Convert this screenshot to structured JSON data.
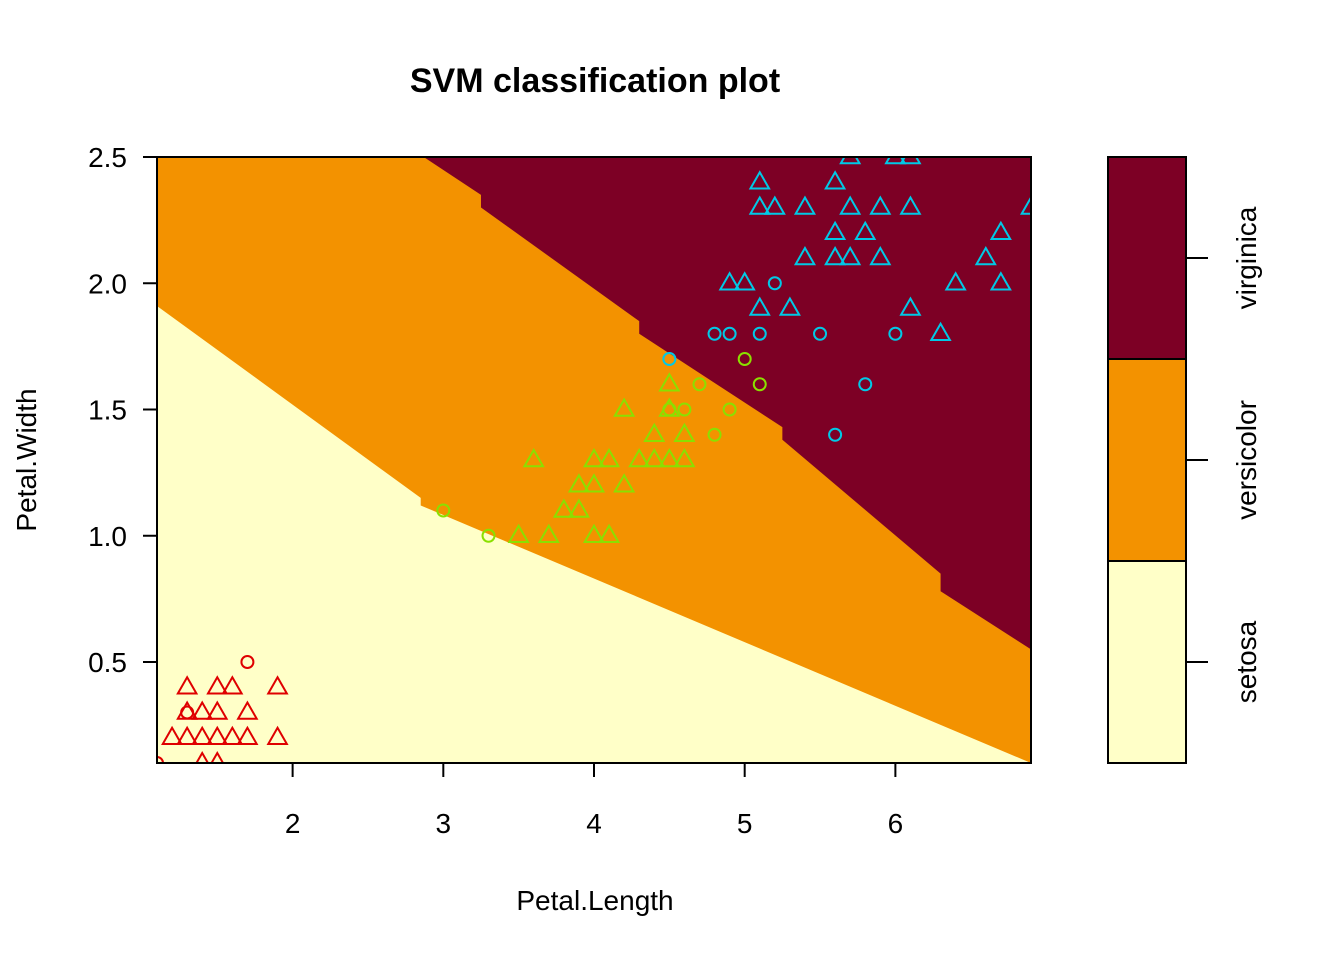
{
  "chart_data": {
    "type": "scatter",
    "title": "SVM classification plot",
    "xlabel": "Petal.Length",
    "ylabel": "Petal.Width",
    "xlim": [
      1.1,
      6.9
    ],
    "ylim": [
      0.1,
      2.5
    ],
    "xticks": [
      2,
      3,
      4,
      5,
      6
    ],
    "yticks": [
      0.5,
      1.0,
      1.5,
      2.0,
      2.5
    ],
    "ytick_labels": [
      "0.5",
      "1.0",
      "1.5",
      "2.0",
      "2.5"
    ],
    "grid": false,
    "legend": {
      "placement": "right",
      "entries": [
        "setosa",
        "versicolor",
        "virginica"
      ]
    },
    "region_colors": {
      "setosa": "#FFFFC8",
      "versicolor": "#F39200",
      "virginica": "#7D0025"
    },
    "boundaries": {
      "setosa_versicolor": [
        [
          1.1,
          1.91
        ],
        [
          2.85,
          1.15
        ],
        [
          2.85,
          1.12
        ],
        [
          6.9,
          -0.5
        ]
      ],
      "versicolor_virginica": [
        [
          2.87,
          2.5
        ],
        [
          3.25,
          2.35
        ],
        [
          3.25,
          2.3
        ],
        [
          4.3,
          1.85
        ],
        [
          4.3,
          1.8
        ],
        [
          5.25,
          1.43
        ],
        [
          5.25,
          1.38
        ],
        [
          6.3,
          0.85
        ],
        [
          6.3,
          0.78
        ],
        [
          6.9,
          0.55
        ]
      ]
    },
    "series": [
      {
        "name": "setosa",
        "color": "#DF0000",
        "vectors": [
          [
            1.3,
            0.3
          ],
          [
            1.7,
            0.5
          ],
          [
            1.1,
            0.1
          ]
        ],
        "points": [
          [
            1.3,
            0.4
          ],
          [
            1.5,
            0.4
          ],
          [
            1.6,
            0.4
          ],
          [
            1.9,
            0.4
          ],
          [
            1.3,
            0.3
          ],
          [
            1.4,
            0.3
          ],
          [
            1.5,
            0.3
          ],
          [
            1.7,
            0.3
          ],
          [
            1.2,
            0.2
          ],
          [
            1.3,
            0.2
          ],
          [
            1.4,
            0.2
          ],
          [
            1.5,
            0.2
          ],
          [
            1.6,
            0.2
          ],
          [
            1.7,
            0.2
          ],
          [
            1.9,
            0.2
          ],
          [
            1.4,
            0.1
          ],
          [
            1.5,
            0.1
          ]
        ]
      },
      {
        "name": "versicolor",
        "color": "#8AE000",
        "vectors": [
          [
            3.0,
            1.1
          ],
          [
            3.3,
            1.0
          ],
          [
            4.5,
            1.5
          ],
          [
            4.6,
            1.5
          ],
          [
            4.7,
            1.6
          ],
          [
            4.8,
            1.4
          ],
          [
            4.9,
            1.5
          ],
          [
            5.0,
            1.7
          ],
          [
            5.1,
            1.6
          ]
        ],
        "points": [
          [
            3.5,
            1.0
          ],
          [
            3.7,
            1.0
          ],
          [
            4.0,
            1.0
          ],
          [
            4.1,
            1.0
          ],
          [
            3.8,
            1.1
          ],
          [
            3.9,
            1.1
          ],
          [
            3.9,
            1.2
          ],
          [
            4.0,
            1.2
          ],
          [
            4.2,
            1.2
          ],
          [
            3.6,
            1.3
          ],
          [
            4.0,
            1.3
          ],
          [
            4.1,
            1.3
          ],
          [
            4.3,
            1.3
          ],
          [
            4.4,
            1.3
          ],
          [
            4.5,
            1.3
          ],
          [
            4.6,
            1.3
          ],
          [
            4.4,
            1.4
          ],
          [
            4.6,
            1.4
          ],
          [
            4.2,
            1.5
          ],
          [
            4.5,
            1.5
          ],
          [
            4.5,
            1.6
          ]
        ]
      },
      {
        "name": "virginica",
        "color": "#00C9E6",
        "vectors": [
          [
            4.5,
            1.7
          ],
          [
            4.8,
            1.8
          ],
          [
            4.9,
            1.8
          ],
          [
            5.1,
            1.8
          ],
          [
            5.5,
            1.8
          ],
          [
            6.0,
            1.8
          ],
          [
            5.2,
            2.0
          ],
          [
            5.8,
            1.6
          ],
          [
            5.6,
            1.4
          ]
        ],
        "points": [
          [
            5.1,
            2.4
          ],
          [
            5.6,
            2.4
          ],
          [
            5.7,
            2.5
          ],
          [
            6.0,
            2.5
          ],
          [
            6.1,
            2.5
          ],
          [
            5.1,
            2.3
          ],
          [
            5.2,
            2.3
          ],
          [
            5.4,
            2.3
          ],
          [
            5.7,
            2.3
          ],
          [
            5.9,
            2.3
          ],
          [
            6.1,
            2.3
          ],
          [
            6.9,
            2.3
          ],
          [
            5.6,
            2.2
          ],
          [
            5.8,
            2.2
          ],
          [
            6.7,
            2.2
          ],
          [
            5.4,
            2.1
          ],
          [
            5.6,
            2.1
          ],
          [
            5.7,
            2.1
          ],
          [
            5.9,
            2.1
          ],
          [
            6.6,
            2.1
          ],
          [
            4.9,
            2.0
          ],
          [
            5.0,
            2.0
          ],
          [
            6.4,
            2.0
          ],
          [
            6.7,
            2.0
          ],
          [
            5.1,
            1.9
          ],
          [
            5.3,
            1.9
          ],
          [
            6.1,
            1.9
          ],
          [
            6.3,
            1.8
          ]
        ]
      }
    ]
  }
}
